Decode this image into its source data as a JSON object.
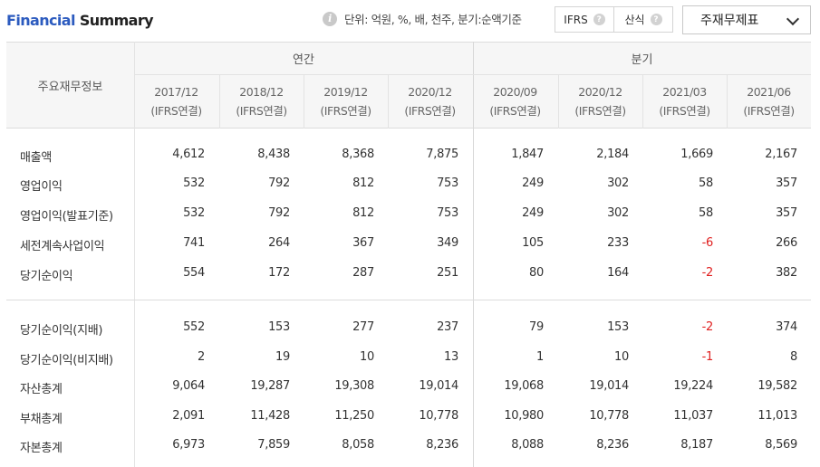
{
  "title": {
    "part1": "Financial",
    "part2": "Summary"
  },
  "info_text": "단위: 억원, %, 배, 천주, 분기:순액기준",
  "info_icon": "i",
  "toggle": {
    "ifrs": "IFRS",
    "formula": "산식",
    "help": "?"
  },
  "statement_select": "주재무제표",
  "table": {
    "row_header": "주요재무정보",
    "groups": [
      "연간",
      "분기"
    ],
    "columns": [
      {
        "period": "2017/12",
        "basis": "(IFRS연결)"
      },
      {
        "period": "2018/12",
        "basis": "(IFRS연결)"
      },
      {
        "period": "2019/12",
        "basis": "(IFRS연결)"
      },
      {
        "period": "2020/12",
        "basis": "(IFRS연결)"
      },
      {
        "period": "2020/09",
        "basis": "(IFRS연결)"
      },
      {
        "period": "2020/12",
        "basis": "(IFRS연결)"
      },
      {
        "period": "2021/03",
        "basis": "(IFRS연결)"
      },
      {
        "period": "2021/06",
        "basis": "(IFRS연결)"
      }
    ],
    "rows": [
      {
        "label": "매출액",
        "values": [
          "4,612",
          "8,438",
          "8,368",
          "7,875",
          "1,847",
          "2,184",
          "1,669",
          "2,167"
        ]
      },
      {
        "label": "영업이익",
        "values": [
          "532",
          "792",
          "812",
          "753",
          "249",
          "302",
          "58",
          "357"
        ]
      },
      {
        "label": "영업이익(발표기준)",
        "values": [
          "532",
          "792",
          "812",
          "753",
          "249",
          "302",
          "58",
          "357"
        ]
      },
      {
        "label": "세전계속사업이익",
        "values": [
          "741",
          "264",
          "367",
          "349",
          "105",
          "233",
          "-6",
          "266"
        ]
      },
      {
        "label": "당기순이익",
        "values": [
          "554",
          "172",
          "287",
          "251",
          "80",
          "164",
          "-2",
          "382"
        ]
      },
      {
        "label": "당기순이익(지배)",
        "values": [
          "552",
          "153",
          "277",
          "237",
          "79",
          "153",
          "-2",
          "374"
        ]
      },
      {
        "label": "당기순이익(비지배)",
        "values": [
          "2",
          "19",
          "10",
          "13",
          "1",
          "10",
          "-1",
          "8"
        ]
      },
      {
        "label": "자산총계",
        "values": [
          "9,064",
          "19,287",
          "19,308",
          "19,014",
          "19,068",
          "19,014",
          "19,224",
          "19,582"
        ]
      },
      {
        "label": "부채총계",
        "values": [
          "2,091",
          "11,428",
          "11,250",
          "10,778",
          "10,980",
          "10,778",
          "11,037",
          "11,013"
        ]
      },
      {
        "label": "자본총계",
        "values": [
          "6,973",
          "7,859",
          "8,058",
          "8,236",
          "8,088",
          "8,236",
          "8,187",
          "8,569"
        ]
      }
    ]
  },
  "colors": {
    "accent": "#2c5bbf",
    "negative": "#e02020"
  }
}
